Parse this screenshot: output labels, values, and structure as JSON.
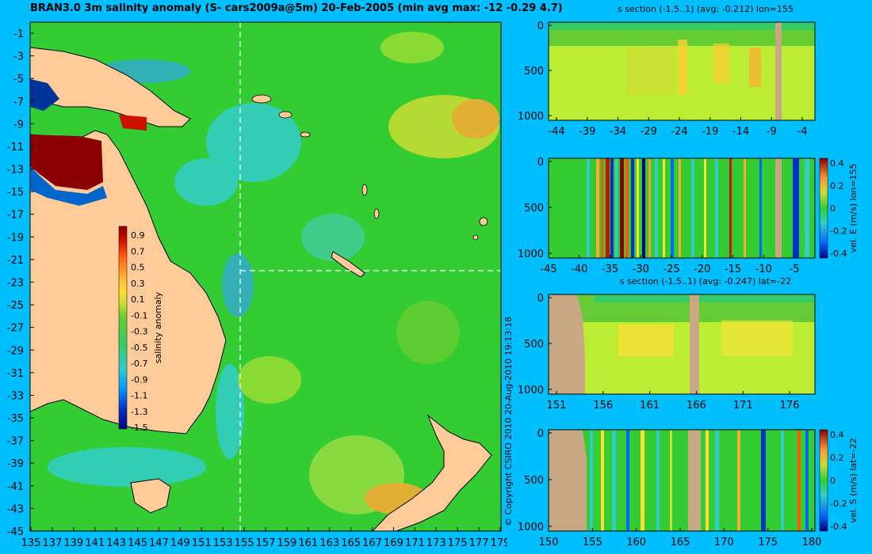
{
  "main_title": "BRAN3.0 3m salinity anomaly (S- cars2009a@5m) 20-Feb-2005 (min avg max: -12 -0.29 4.7)",
  "copyright": "© Copyright CSIRO 2010   20-Aug-2010 19:13:18",
  "colors": {
    "background": "#00bfff",
    "land": "#ffcc99",
    "section_land": "#c8a882",
    "sea": "#33cc33",
    "cmap": [
      "#000080",
      "#0033cc",
      "#0099ff",
      "#33cccc",
      "#33cc66",
      "#66cc33",
      "#ccdd33",
      "#ffdd33",
      "#ffaa33",
      "#ff5511",
      "#cc1100",
      "#8b0000"
    ]
  },
  "map": {
    "xticks": [
      "135",
      "137",
      "139",
      "141",
      "143",
      "145",
      "147",
      "149",
      "151",
      "153",
      "155",
      "157",
      "159",
      "161",
      "163",
      "165",
      "167",
      "169",
      "171",
      "173",
      "175",
      "177",
      "179"
    ],
    "yticks": [
      "-1",
      "-3",
      "-5",
      "-7",
      "-9",
      "-11",
      "-13",
      "-15",
      "-17",
      "-19",
      "-21",
      "-23",
      "-25",
      "-27",
      "-29",
      "-31",
      "-33",
      "-35",
      "-37",
      "-39",
      "-41",
      "-43",
      "-45"
    ],
    "colorbar": {
      "label": "salinity anomaly",
      "ticks": [
        "0.9",
        "0.7",
        "0.5",
        "0.3",
        "0.1",
        "-0.1",
        "-0.3",
        "-0.5",
        "-0.7",
        "-0.9",
        "-1.1",
        "-1.3",
        "-1.5"
      ]
    }
  },
  "panels": [
    {
      "title": "s section (-1.5..1) (avg: -0.212) lon=155",
      "xticks": [
        "-44",
        "-39",
        "-34",
        "-29",
        "-24",
        "-19",
        "-14",
        "-9",
        "-4"
      ],
      "yticks": [
        "0",
        "500",
        "1000"
      ],
      "colorbar": null
    },
    {
      "title": "",
      "xticks": [
        "-45",
        "-40",
        "-35",
        "-30",
        "-25",
        "-20",
        "-15",
        "-10",
        "-5"
      ],
      "yticks": [
        "0",
        "500",
        "1000"
      ],
      "colorbar": {
        "label": "vel. E (m/s) lon=155",
        "ticks": [
          "0.4",
          "0.2",
          "0",
          "-0.2",
          "-0.4"
        ]
      }
    },
    {
      "title": "s section (-1.5..1) (avg: -0.247) lat=-22",
      "xticks": [
        "151",
        "156",
        "161",
        "166",
        "171",
        "176"
      ],
      "yticks": [
        "0",
        "500",
        "1000"
      ],
      "colorbar": null
    },
    {
      "title": "",
      "xticks": [
        "150",
        "155",
        "160",
        "165",
        "170",
        "175",
        "180"
      ],
      "yticks": [
        "0",
        "500",
        "1000"
      ],
      "colorbar": {
        "label": "vel. S (m/s) lat=-22",
        "ticks": [
          "0.4",
          "0.2",
          "0",
          "-0.2",
          "-0.4"
        ]
      }
    }
  ],
  "chart_data": [
    {
      "type": "heatmap",
      "title": "BRAN3.0 3m salinity anomaly (S- cars2009a@5m) 20-Feb-2005 (min avg max: -12 -0.29 4.7)",
      "x_range": [
        135,
        180
      ],
      "y_range": [
        -45,
        0
      ],
      "stats": {
        "min": -12,
        "avg": -0.29,
        "max": 4.7
      },
      "colorbar_range": [
        -1.5,
        1
      ],
      "section_lines": {
        "lon": 155,
        "lat": -22
      }
    },
    {
      "type": "heatmap",
      "title": "s section (-1.5..1) (avg: -0.212) lon=155",
      "x_range": [
        -45,
        0
      ],
      "y_range": [
        0,
        1000
      ],
      "avg": -0.212
    },
    {
      "type": "heatmap",
      "title": "vel. E (m/s) lon=155",
      "x_range": [
        -45,
        0
      ],
      "y_range": [
        0,
        1000
      ],
      "colorbar_range": [
        -0.4,
        0.4
      ]
    },
    {
      "type": "heatmap",
      "title": "s section (-1.5..1) (avg: -0.247) lat=-22",
      "x_range": [
        150,
        180
      ],
      "y_range": [
        0,
        1000
      ],
      "avg": -0.247
    },
    {
      "type": "heatmap",
      "title": "vel. S (m/s) lat=-22",
      "x_range": [
        150,
        180
      ],
      "y_range": [
        0,
        1000
      ],
      "colorbar_range": [
        -0.4,
        0.4
      ]
    }
  ]
}
